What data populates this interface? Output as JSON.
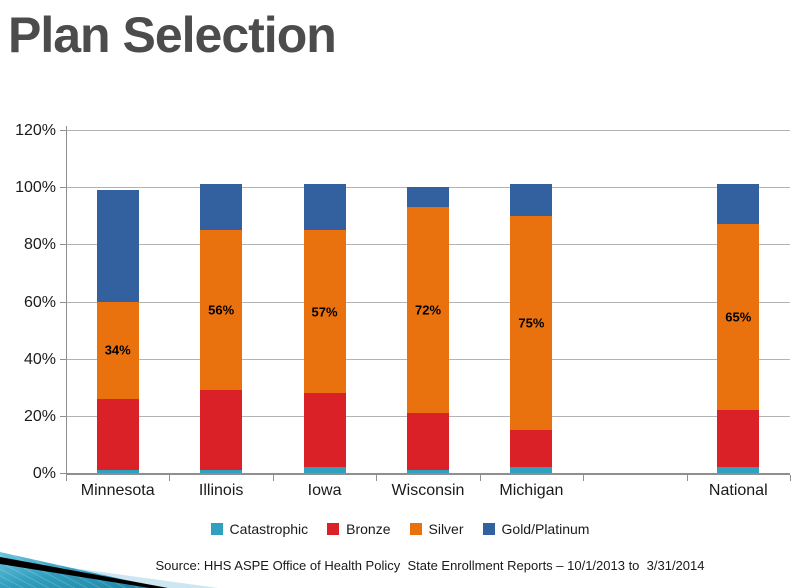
{
  "page": {
    "title": "Plan Selection"
  },
  "chart_data": {
    "type": "bar",
    "stacked": true,
    "title": "Plan Selection",
    "xlabel": "",
    "ylabel": "",
    "ylim": [
      0,
      120
    ],
    "grid": true,
    "legend_position": "bottom",
    "y_ticks": [
      "0%",
      "20%",
      "40%",
      "60%",
      "80%",
      "100%",
      "120%"
    ],
    "y_tick_values": [
      0,
      20,
      40,
      60,
      80,
      100,
      120
    ],
    "categories": [
      "Minnesota",
      "Illinois",
      "Iowa",
      "Wisconsin",
      "Michigan",
      "",
      "National"
    ],
    "series": [
      {
        "name": "Catastrophic",
        "color": "#2FA0BE",
        "values": [
          1,
          1,
          2,
          1,
          2,
          null,
          2
        ]
      },
      {
        "name": "Bronze",
        "color": "#DB2128",
        "values": [
          25,
          28,
          26,
          20,
          13,
          null,
          20
        ]
      },
      {
        "name": "Silver",
        "color": "#EA720E",
        "values": [
          34,
          56,
          57,
          72,
          75,
          null,
          65
        ]
      },
      {
        "name": "Gold/Platinum",
        "color": "#33609E",
        "values": [
          39,
          16,
          16,
          7,
          11,
          null,
          14
        ]
      }
    ],
    "bar_labels": [
      "34%",
      "56%",
      "57%",
      "72%",
      "75%",
      null,
      "65%"
    ],
    "label_series": "Silver"
  },
  "source_note": "Source: HHS ASPE Office of Health Policy  State Enrollment Reports – 10/1/2013 to  3/31/2014",
  "colors": {
    "grid": "#b3b3b3",
    "axis": "#8f8f8f",
    "title": "#4c4c4c",
    "decoration_teal_light": "#5FC0DA",
    "decoration_teal_dark": "#1E85A5",
    "decoration_black": "#000000",
    "decoration_pale_blue": "#CCE6F2"
  }
}
